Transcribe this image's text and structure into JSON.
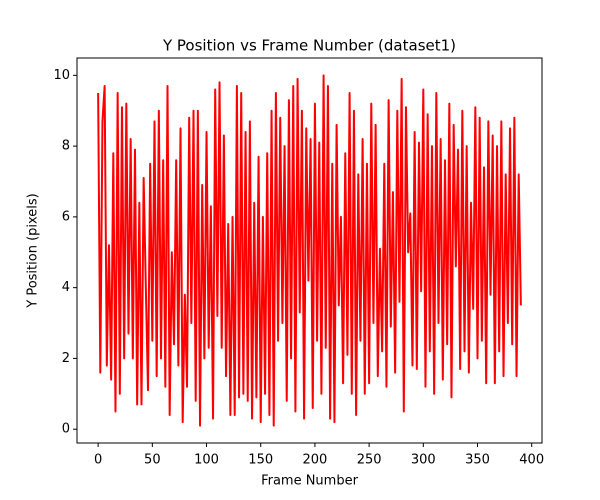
{
  "chart_data": {
    "type": "line",
    "title": "Y Position vs Frame Number (dataset1)",
    "xlabel": "Frame Number",
    "ylabel": "Y Position (pixels)",
    "x": [
      0,
      2,
      4,
      6,
      8,
      10,
      12,
      14,
      16,
      18,
      20,
      22,
      24,
      26,
      28,
      30,
      32,
      34,
      36,
      38,
      40,
      42,
      44,
      46,
      48,
      50,
      52,
      54,
      56,
      58,
      60,
      62,
      64,
      66,
      68,
      70,
      72,
      74,
      76,
      78,
      80,
      82,
      84,
      86,
      88,
      90,
      92,
      94,
      96,
      98,
      100,
      102,
      104,
      106,
      108,
      110,
      112,
      114,
      116,
      118,
      120,
      122,
      124,
      126,
      128,
      130,
      132,
      134,
      136,
      138,
      140,
      142,
      144,
      146,
      148,
      150,
      152,
      154,
      156,
      158,
      160,
      162,
      164,
      166,
      168,
      170,
      172,
      174,
      176,
      178,
      180,
      182,
      184,
      186,
      188,
      190,
      192,
      194,
      196,
      198,
      200,
      202,
      204,
      206,
      208,
      210,
      212,
      214,
      216,
      218,
      220,
      222,
      224,
      226,
      228,
      230,
      232,
      234,
      236,
      238,
      240,
      242,
      244,
      246,
      248,
      250,
      252,
      254,
      256,
      258,
      260,
      262,
      264,
      266,
      268,
      270,
      272,
      274,
      276,
      278,
      280,
      282,
      284,
      286,
      288,
      290,
      292,
      294,
      296,
      298,
      300,
      302,
      304,
      306,
      308,
      310,
      312,
      314,
      316,
      318,
      320,
      322,
      324,
      326,
      328,
      330,
      332,
      334,
      336,
      338,
      340,
      342,
      344,
      346,
      348,
      350,
      352,
      354,
      356,
      358,
      360,
      362,
      364,
      366,
      368,
      370,
      372,
      374,
      376,
      378,
      380,
      382,
      384,
      386,
      388,
      390
    ],
    "series": [
      {
        "name": "dataset1",
        "color": "#ff0000",
        "values": [
          9.5,
          1.6,
          8.7,
          9.7,
          1.8,
          5.2,
          1.4,
          7.8,
          0.5,
          9.5,
          1.0,
          9.1,
          2.0,
          9.2,
          2.7,
          8.2,
          2.0,
          7.9,
          0.7,
          6.4,
          0.7,
          7.1,
          4.0,
          1.1,
          7.5,
          2.5,
          8.7,
          1.5,
          9.0,
          2.0,
          7.6,
          1.2,
          9.7,
          0.4,
          5.0,
          2.4,
          7.6,
          1.8,
          8.5,
          0.2,
          3.8,
          1.2,
          8.8,
          3.0,
          9.0,
          0.8,
          9.0,
          0.1,
          6.9,
          2.0,
          8.4,
          2.3,
          6.3,
          0.3,
          9.6,
          3.2,
          9.8,
          2.3,
          8.3,
          1.5,
          5.8,
          0.4,
          6.0,
          0.4,
          9.7,
          0.9,
          9.5,
          1.0,
          8.4,
          0.8,
          8.7,
          0.3,
          6.4,
          0.9,
          7.7,
          0.2,
          6.0,
          1.0,
          7.8,
          0.4,
          9.0,
          0.1,
          9.5,
          2.5,
          8.8,
          3.0,
          8.0,
          0.8,
          9.3,
          2.0,
          9.7,
          0.5,
          9.9,
          3.3,
          9.0,
          0.3,
          8.5,
          4.2,
          8.2,
          0.6,
          9.2,
          2.5,
          8.1,
          1.0,
          10.0,
          2.3,
          9.7,
          0.3,
          7.5,
          0.2,
          8.6,
          3.5,
          6.0,
          1.3,
          7.8,
          2.1,
          9.5,
          1.0,
          9.0,
          0.4,
          7.2,
          2.5,
          8.2,
          1.0,
          7.5,
          1.3,
          9.2,
          3.0,
          8.6,
          1.5,
          5.1,
          2.2,
          7.5,
          1.2,
          9.3,
          2.9,
          6.7,
          1.6,
          9.0,
          3.6,
          9.9,
          0.5,
          9.1,
          5.0,
          6.1,
          1.8,
          8.4,
          1.7,
          8.1,
          3.9,
          9.6,
          1.2,
          8.9,
          2.2,
          8.0,
          1.0,
          9.5,
          3.0,
          8.2,
          1.4,
          7.6,
          2.4,
          9.2,
          0.9,
          8.6,
          4.6,
          7.9,
          1.7,
          9.0,
          2.2,
          8.0,
          1.6,
          6.4,
          3.4,
          9.1,
          2.0,
          8.8,
          2.5,
          7.4,
          1.3,
          8.7,
          3.8,
          8.3,
          1.3,
          8.0,
          2.2,
          8.7,
          1.5,
          7.2,
          3.0,
          8.5,
          2.4,
          8.8,
          1.5,
          7.2,
          3.5
        ]
      }
    ],
    "xlim": [
      -19.5,
      409.5
    ],
    "xticks": [
      0,
      50,
      100,
      150,
      200,
      250,
      300,
      350,
      400
    ],
    "ylim": [
      -0.39,
      10.49
    ],
    "yticks": [
      0,
      2,
      4,
      6,
      8,
      10
    ],
    "grid": false
  }
}
